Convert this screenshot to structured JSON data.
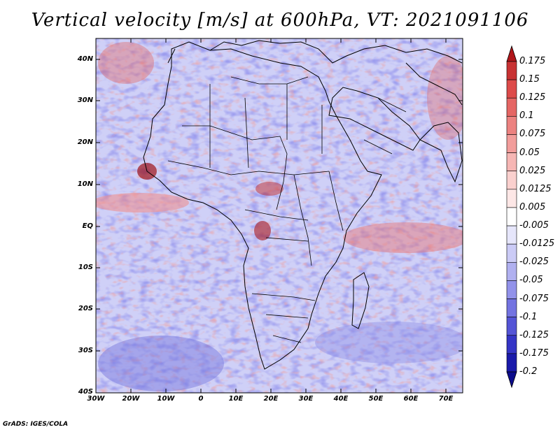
{
  "title": "Vertical velocity [m/s] at 600hPa, VT: 2021091106",
  "credit": "GrADS: IGES/COLA",
  "chart_data": {
    "type": "heatmap",
    "variable": "Vertical velocity",
    "units": "m/s",
    "level": "600hPa",
    "valid_time": "2021091106",
    "lon_range": [
      -30,
      75
    ],
    "lat_range": [
      -40,
      45
    ],
    "lat_ticks": [
      "40N",
      "30N",
      "20N",
      "10N",
      "EQ",
      "10S",
      "20S",
      "30S",
      "40S"
    ],
    "lat_values": [
      40,
      30,
      20,
      10,
      0,
      -10,
      -20,
      -30,
      -40
    ],
    "lon_ticks": [
      "30W",
      "20W",
      "10W",
      "0",
      "10E",
      "20E",
      "30E",
      "40E",
      "50E",
      "60E",
      "70E"
    ],
    "lon_values": [
      -30,
      -20,
      -10,
      0,
      10,
      20,
      30,
      40,
      50,
      60,
      70
    ],
    "colorbar": {
      "labels": [
        "0.175",
        "0.15",
        "0.125",
        "0.1",
        "0.075",
        "0.05",
        "0.025",
        "0.0125",
        "0.005",
        "-0.005",
        "-0.0125",
        "-0.025",
        "-0.05",
        "-0.075",
        "-0.1",
        "-0.125",
        "-0.175",
        "-0.2"
      ],
      "colors": [
        "#b0161a",
        "#c83233",
        "#dd4b4a",
        "#e56664",
        "#ec8280",
        "#f29d9b",
        "#f6b6b4",
        "#fad0ce",
        "#fde7e6",
        "#ffffff",
        "#e6e6fb",
        "#cbcbf6",
        "#b0b0f0",
        "#9292ea",
        "#7373e1",
        "#5454d6",
        "#3434c6",
        "#1a1aaa",
        "#0c0c8c"
      ]
    }
  }
}
